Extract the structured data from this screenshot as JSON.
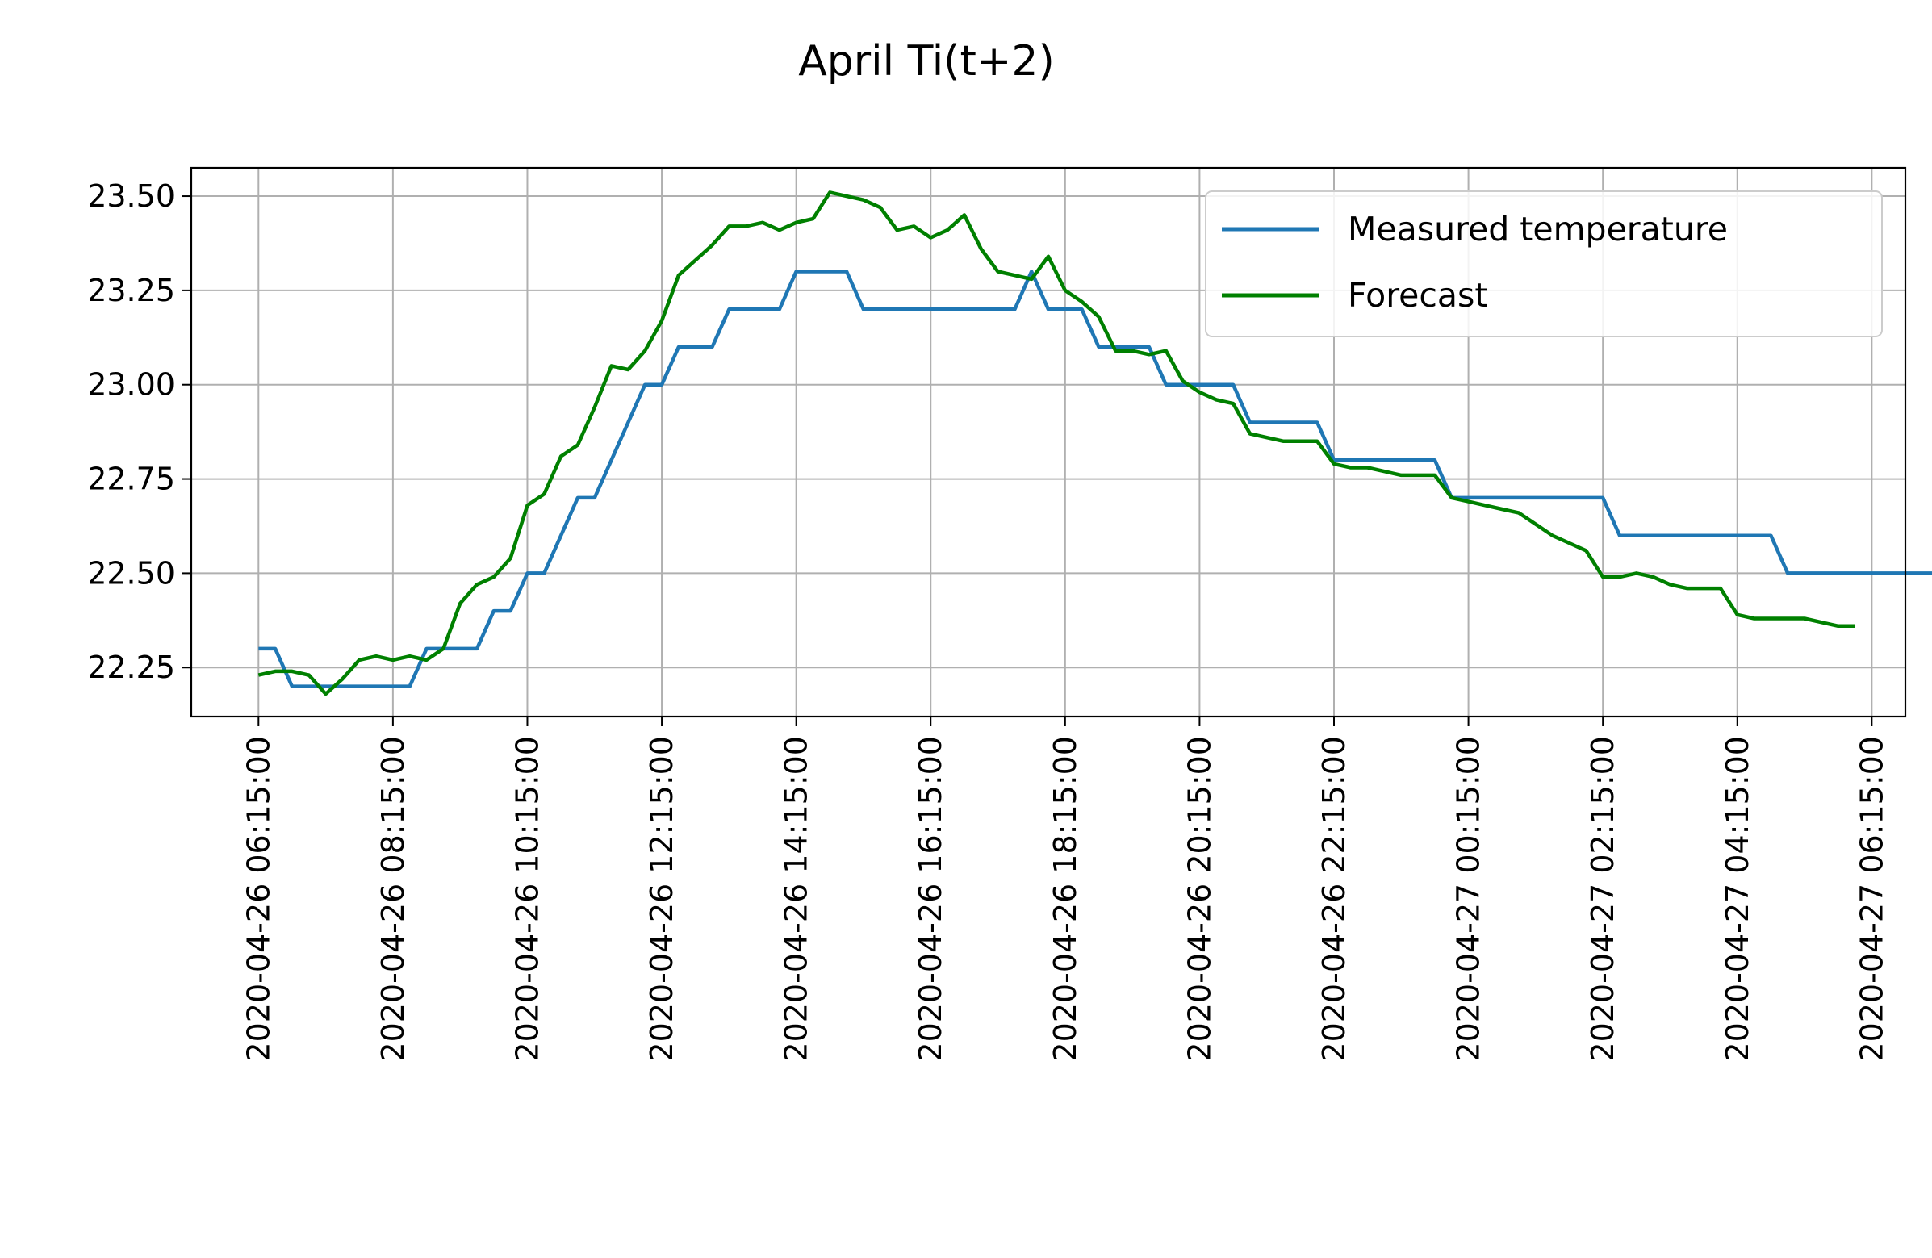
{
  "chart_data": {
    "type": "line",
    "title": "April Ti(t+2)",
    "xlabel": "",
    "ylabel": "",
    "grid": true,
    "legend_position": "top-right",
    "x_start": "2020-04-26 06:15:00",
    "x_interval_minutes": 15,
    "xlim": [
      "2020-04-26 05:15:00",
      "2020-04-27 06:45:00"
    ],
    "ylim": [
      22.12,
      23.575
    ],
    "x_ticks": [
      "2020-04-26 06:15:00",
      "2020-04-26 08:15:00",
      "2020-04-26 10:15:00",
      "2020-04-26 12:15:00",
      "2020-04-26 14:15:00",
      "2020-04-26 16:15:00",
      "2020-04-26 18:15:00",
      "2020-04-26 20:15:00",
      "2020-04-26 22:15:00",
      "2020-04-27 00:15:00",
      "2020-04-27 02:15:00",
      "2020-04-27 04:15:00",
      "2020-04-27 06:15:00"
    ],
    "y_ticks": [
      "22.25",
      "22.50",
      "22.75",
      "23.00",
      "23.25",
      "23.50"
    ],
    "series": [
      {
        "name": "Measured temperature",
        "color": "#1f77b4",
        "values": [
          22.3,
          22.3,
          22.2,
          22.2,
          22.2,
          22.2,
          22.2,
          22.2,
          22.2,
          22.2,
          22.3,
          22.3,
          22.3,
          22.3,
          22.4,
          22.4,
          22.5,
          22.5,
          22.6,
          22.7,
          22.7,
          22.8,
          22.9,
          23.0,
          23.0,
          23.1,
          23.1,
          23.1,
          23.2,
          23.2,
          23.2,
          23.2,
          23.3,
          23.3,
          23.3,
          23.3,
          23.2,
          23.2,
          23.2,
          23.2,
          23.2,
          23.2,
          23.2,
          23.2,
          23.2,
          23.2,
          23.3,
          23.2,
          23.2,
          23.2,
          23.1,
          23.1,
          23.1,
          23.1,
          23.0,
          23.0,
          23.0,
          23.0,
          23.0,
          22.9,
          22.9,
          22.9,
          22.9,
          22.9,
          22.8,
          22.8,
          22.8,
          22.8,
          22.8,
          22.8,
          22.8,
          22.7,
          22.7,
          22.7,
          22.7,
          22.7,
          22.7,
          22.7,
          22.7,
          22.7,
          22.7,
          22.6,
          22.6,
          22.6,
          22.6,
          22.6,
          22.6,
          22.6,
          22.6,
          22.6,
          22.6,
          22.5,
          22.5,
          22.5,
          22.5,
          22.5,
          22.5,
          22.5,
          22.5,
          22.5,
          22.5
        ]
      },
      {
        "name": "Forecast",
        "color": "#008000",
        "values": [
          22.23,
          22.24,
          22.24,
          22.23,
          22.18,
          22.22,
          22.27,
          22.28,
          22.27,
          22.28,
          22.27,
          22.3,
          22.42,
          22.47,
          22.49,
          22.54,
          22.68,
          22.71,
          22.81,
          22.84,
          22.94,
          23.05,
          23.04,
          23.09,
          23.17,
          23.29,
          23.33,
          23.37,
          23.42,
          23.42,
          23.43,
          23.41,
          23.43,
          23.44,
          23.51,
          23.5,
          23.49,
          23.47,
          23.41,
          23.42,
          23.39,
          23.41,
          23.45,
          23.36,
          23.3,
          23.29,
          23.28,
          23.34,
          23.25,
          23.22,
          23.18,
          23.09,
          23.09,
          23.08,
          23.09,
          23.01,
          22.98,
          22.96,
          22.95,
          22.87,
          22.86,
          22.85,
          22.85,
          22.85,
          22.79,
          22.78,
          22.78,
          22.77,
          22.76,
          22.76,
          22.76,
          22.7,
          22.69,
          22.68,
          22.67,
          22.66,
          22.63,
          22.6,
          22.58,
          22.56,
          22.49,
          22.49,
          22.5,
          22.49,
          22.47,
          22.46,
          22.46,
          22.46,
          22.39,
          22.38,
          22.38,
          22.38,
          22.38,
          22.37,
          22.36,
          22.36
        ]
      }
    ]
  }
}
